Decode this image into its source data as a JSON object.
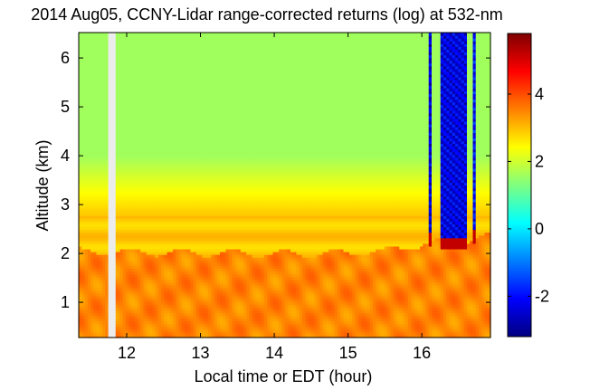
{
  "chart_data": {
    "type": "heatmap",
    "title": "2014 Aug05, CCNY-Lidar range-corrected returns (log) at 532-nm",
    "xlabel": "Local time or EDT (hour)",
    "ylabel": "Altitude (km)",
    "xlim": [
      11.35,
      16.93
    ],
    "ylim": [
      0.28,
      6.52
    ],
    "xticks": [
      12,
      13,
      14,
      15,
      16
    ],
    "yticks": [
      1,
      2,
      3,
      4,
      5,
      6
    ],
    "colorbar": {
      "range": [
        -3.2,
        5.8
      ],
      "ticks": [
        -2,
        0,
        2,
        4
      ],
      "colormap": "jet",
      "colors": [
        "#00007f",
        "#0000ff",
        "#007fff",
        "#00ffff",
        "#7fff7f",
        "#ffff00",
        "#ff7f00",
        "#ff0000",
        "#7f0000"
      ]
    },
    "data_gap": {
      "x_start": 11.75,
      "x_end": 11.85,
      "color": "#ececec"
    },
    "field": {
      "upper_free_troposphere_value": 1.6,
      "residual_layer_top_km": 2.8,
      "residual_layer_value": 2.9,
      "mixed_layer_value": 3.5,
      "mixed_layer_top_km": [
        {
          "time": 11.35,
          "top": 2.05
        },
        {
          "time": 13.0,
          "top": 2.02
        },
        {
          "time": 14.5,
          "top": 2.0
        },
        {
          "time": 15.5,
          "top": 2.05
        },
        {
          "time": 16.0,
          "top": 2.2
        },
        {
          "time": 16.93,
          "top": 2.35
        }
      ]
    },
    "cloud_events": [
      {
        "x_start": 16.08,
        "x_end": 16.14,
        "cloud_base_km": 2.3,
        "above_value": -2.4
      },
      {
        "x_start": 16.24,
        "x_end": 16.6,
        "cloud_base_km": 2.2,
        "above_value": -2.3
      },
      {
        "x_start": 16.68,
        "x_end": 16.72,
        "cloud_base_km": 2.35,
        "above_value": -2.0
      }
    ]
  }
}
